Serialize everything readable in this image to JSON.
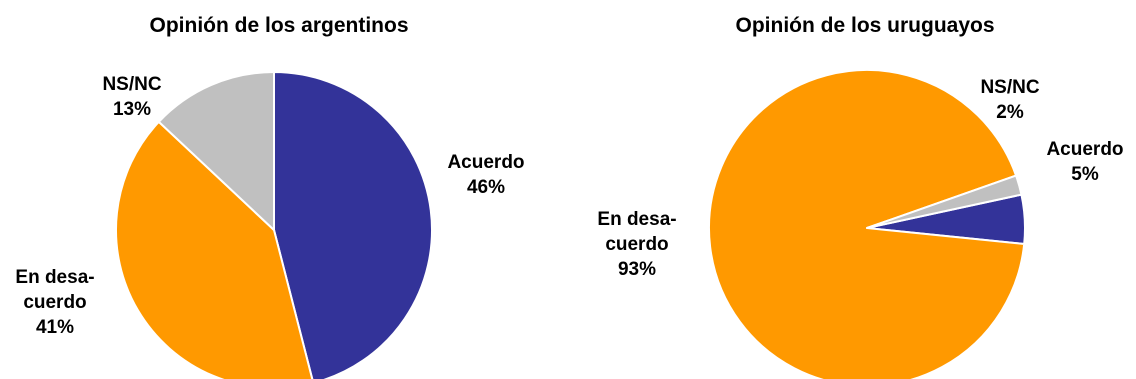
{
  "chart_data": [
    {
      "type": "pie",
      "title": "Opinión de los argentinos",
      "slices": [
        {
          "label_lines": [
            "Acuerdo"
          ],
          "value": 46,
          "value_label": "46%",
          "color": "#333399"
        },
        {
          "label_lines": [
            "En desa-",
            "cuerdo"
          ],
          "value": 41,
          "value_label": "41%",
          "color": "#ff9900"
        },
        {
          "label_lines": [
            "NS/NC"
          ],
          "value": 13,
          "value_label": "13%",
          "color": "#c0c0c0"
        }
      ]
    },
    {
      "type": "pie",
      "title": "Opinión de los uruguayos",
      "slices": [
        {
          "label_lines": [
            "Acuerdo"
          ],
          "value": 5,
          "value_label": "5%",
          "color": "#333399"
        },
        {
          "label_lines": [
            "En desa-",
            "cuerdo"
          ],
          "value": 93,
          "value_label": "93%",
          "color": "#ff9900"
        },
        {
          "label_lines": [
            "NS/NC"
          ],
          "value": 2,
          "value_label": "2%",
          "color": "#c0c0c0"
        }
      ]
    }
  ]
}
